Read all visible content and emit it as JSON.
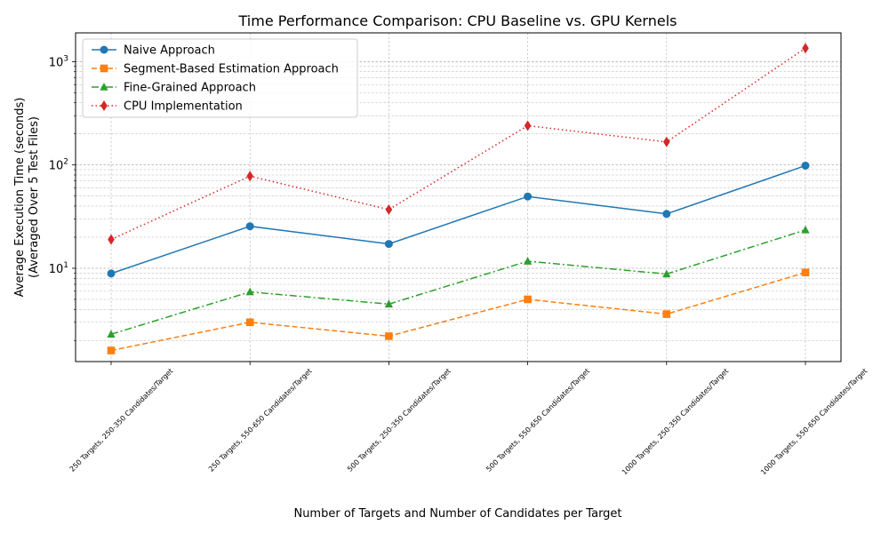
{
  "chart_data": {
    "type": "line",
    "title": "Time Performance Comparison: CPU Baseline vs. GPU Kernels",
    "xlabel": "Number of Targets and Number of Candidates per Target",
    "ylabel_line1": "Average Execution Time (seconds)",
    "ylabel_line2": "(Averaged Over 5 Test Files)",
    "yscale": "log",
    "ylim": [
      1.25,
      1900
    ],
    "grid": true,
    "legend_position": "top-left",
    "categories": [
      "250 Targets, 250-350 Candidates/Target",
      "250 Targets, 550-650 Candidates/Target",
      "500 Targets, 250-350 Candidates/Target",
      "500 Targets, 550-650 Candidates/Target",
      "1000 Targets, 250-350 Candidates/Target",
      "1000 Targets, 550-650 Candidates/Target"
    ],
    "y_ticks": [
      {
        "value": 10,
        "base": "10",
        "exp": "1"
      },
      {
        "value": 100,
        "base": "10",
        "exp": "2"
      },
      {
        "value": 1000,
        "base": "10",
        "exp": "3"
      }
    ],
    "series": [
      {
        "name": "Naive Approach",
        "color": "#1f77b4",
        "marker": "circle",
        "dash": "",
        "values": [
          8.9,
          25.5,
          17.2,
          49.5,
          33.6,
          98.5
        ]
      },
      {
        "name": "Segment-Based Estimation Approach",
        "color": "#ff7f0e",
        "marker": "square",
        "dash": "6,3",
        "values": [
          1.6,
          3.0,
          2.2,
          5.0,
          3.6,
          9.1
        ]
      },
      {
        "name": "Fine-Grained Approach",
        "color": "#2ca02c",
        "marker": "triangle",
        "dash": "8,3,2,3",
        "values": [
          2.3,
          5.9,
          4.5,
          11.7,
          8.8,
          23.5
        ]
      },
      {
        "name": "CPU Implementation",
        "color": "#d62728",
        "marker": "diamond",
        "dash": "1.5,3",
        "values": [
          19.0,
          78.0,
          37.0,
          240.0,
          167.0,
          1350.0
        ]
      }
    ]
  }
}
